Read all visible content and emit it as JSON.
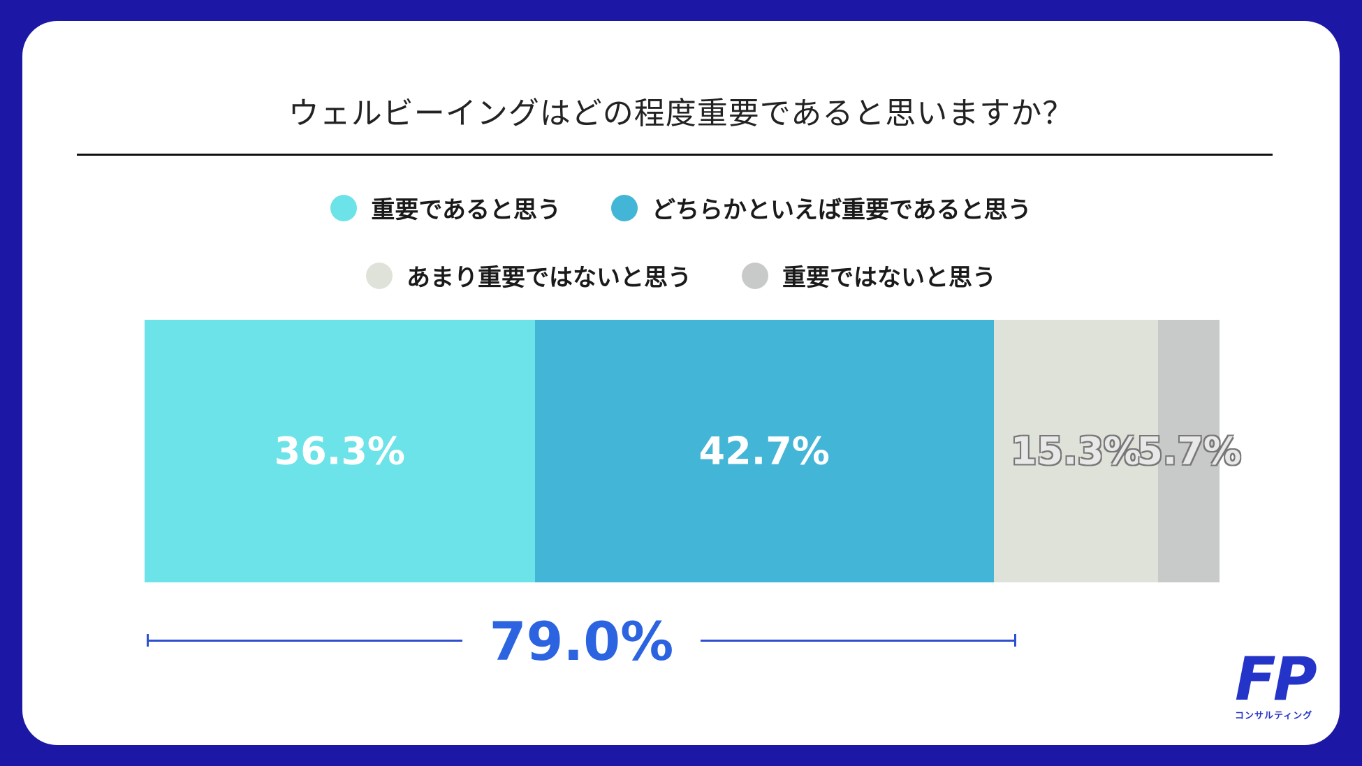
{
  "title": "ウェルビーイングはどの程度重要であると思いますか？",
  "legend_row1": [
    {
      "label": "重要であると思う",
      "color": "#6ce3e8"
    },
    {
      "label": "どちらかといえば重要であると思う",
      "color": "#43b5d6"
    }
  ],
  "legend_row2": [
    {
      "label": "あまり重要ではないと思う",
      "color": "#dfe2d9"
    },
    {
      "label": "重要ではないと思う",
      "color": "#c8c9c9"
    }
  ],
  "chart_data": {
    "type": "bar",
    "orientation": "horizontal-stacked-100",
    "categories": [
      "重要であると思う",
      "どちらかといえば重要であると思う",
      "あまり重要ではないと思う",
      "重要ではないと思う"
    ],
    "values": [
      36.3,
      42.7,
      15.3,
      5.7
    ],
    "value_labels": [
      "36.3%",
      "42.7%",
      "15.3%",
      "5.7%"
    ],
    "colors": [
      "#6ce3e8",
      "#43b5d6",
      "#dfe2d9",
      "#c8c9c9"
    ],
    "title": "ウェルビーイングはどの程度重要であると思いますか？",
    "annotation": {
      "text": "79.0%",
      "spans": [
        0,
        1
      ]
    }
  },
  "logo": {
    "letters": "FP",
    "subtitle": "コンサルティング"
  }
}
